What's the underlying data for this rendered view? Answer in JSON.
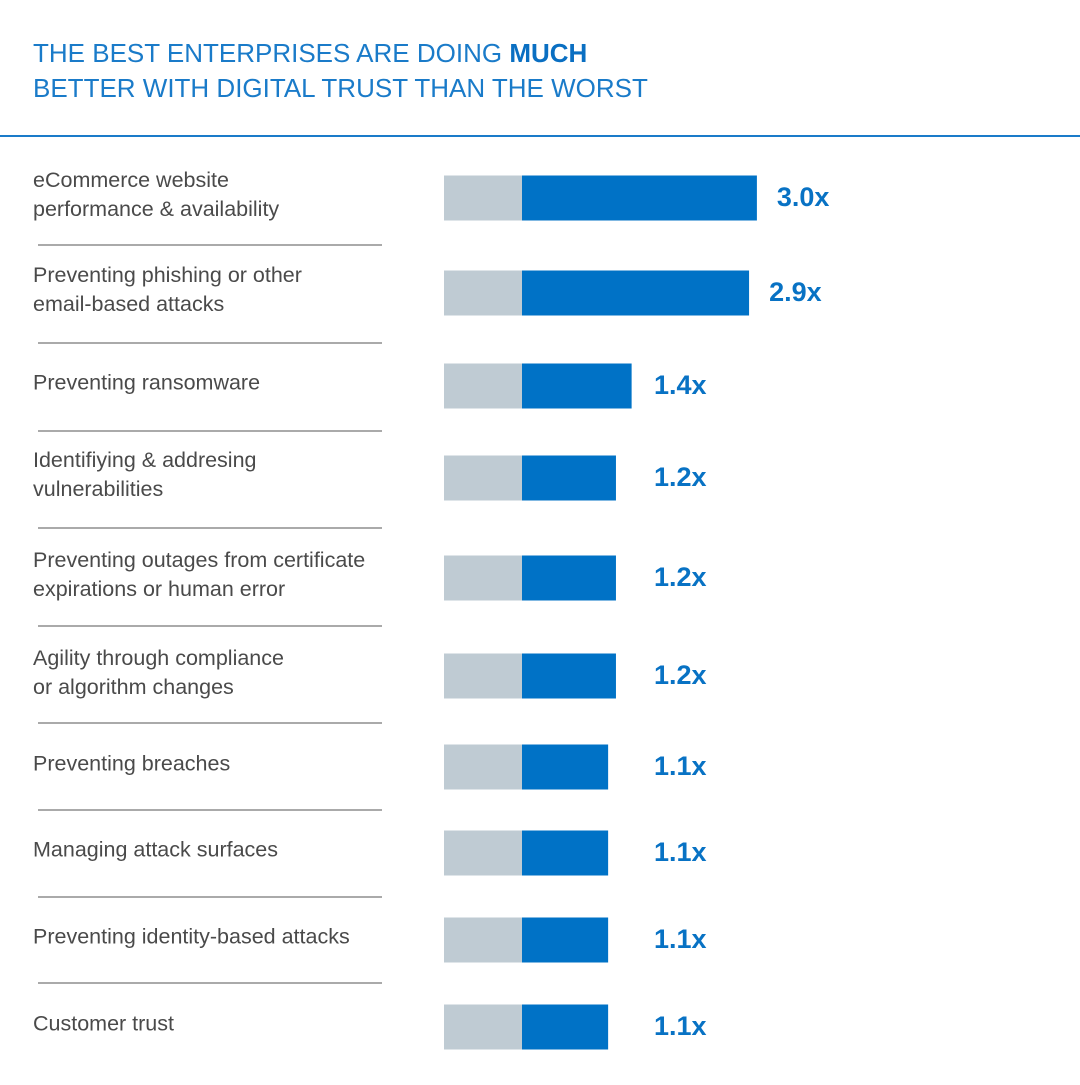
{
  "chart_data": {
    "type": "bar",
    "title_parts": [
      "THE BEST ENTERPRISES ARE DOING",
      "MUCH",
      "BETTER WITH DIGITAL TRUST THAN THE WORST"
    ],
    "categories": [
      [
        "eCommerce website",
        "performance & availability"
      ],
      [
        "Preventing phishing or other",
        "email-based attacks"
      ],
      [
        "Preventing ransomware"
      ],
      [
        "Identifiying & addresing",
        "vulnerabilities"
      ],
      [
        "Preventing outages from certificate",
        "expirations or human error"
      ],
      [
        "Agility through compliance",
        "or algorithm changes"
      ],
      [
        "Preventing breaches"
      ],
      [
        "Managing attack surfaces"
      ],
      [
        "Preventing identity-based attacks"
      ],
      [
        "Customer trust"
      ]
    ],
    "values": [
      3.0,
      2.9,
      1.4,
      1.2,
      1.2,
      1.2,
      1.1,
      1.1,
      1.1,
      1.1
    ],
    "value_labels": [
      "3.0x",
      "2.9x",
      "1.4x",
      "1.2x",
      "1.2x",
      "1.2x",
      "1.1x",
      "1.1x",
      "1.1x",
      "1.1x"
    ],
    "color": "#0072c6",
    "baseline_color": "#bfcbd3"
  }
}
